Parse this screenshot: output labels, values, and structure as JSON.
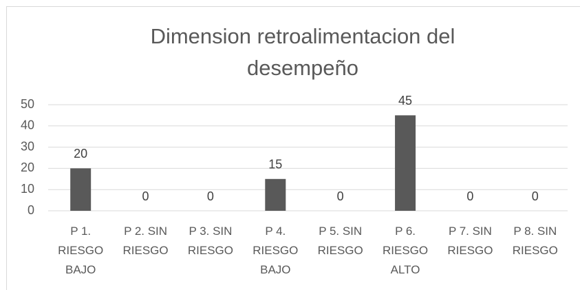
{
  "chart_data": {
    "type": "bar",
    "title": "Dimension retroalimentacion del desempeño",
    "categories": [
      "P 1. RIESGO BAJO",
      "P 2. SIN RIESGO",
      "P 3. SIN RIESGO",
      "P 4. RIESGO BAJO",
      "P 5. SIN RIESGO",
      "P 6. RIESGO ALTO",
      "P 7. SIN RIESGO",
      "P 8. SIN RIESGO"
    ],
    "values": [
      20,
      0,
      0,
      15,
      0,
      45,
      0,
      0
    ],
    "color": "#595959",
    "ylim": [
      0,
      50
    ],
    "yticks": [
      0,
      10,
      20,
      30,
      40,
      50
    ],
    "grid": true
  }
}
